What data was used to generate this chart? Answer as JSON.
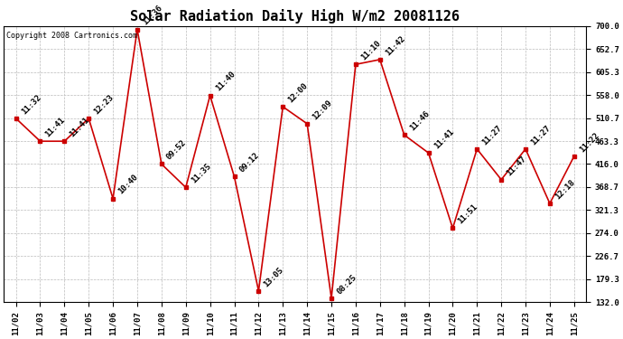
{
  "title": "Solar Radiation Daily High W/m2 20081126",
  "copyright_text": "Copyright 2008 Cartronics.com",
  "dates": [
    "11/02",
    "11/03",
    "11/04",
    "11/05",
    "11/06",
    "11/07",
    "11/08",
    "11/09",
    "11/10",
    "11/11",
    "11/12",
    "11/13",
    "11/14",
    "11/15",
    "11/16",
    "11/17",
    "11/18",
    "11/19",
    "11/20",
    "11/21",
    "11/22",
    "11/23",
    "11/24",
    "11/25"
  ],
  "values": [
    510,
    463,
    463,
    510,
    345,
    693,
    416,
    368,
    557,
    390,
    155,
    534,
    499,
    140,
    621,
    631,
    476,
    439,
    284,
    447,
    384,
    447,
    335,
    432
  ],
  "labels": [
    "11:32",
    "11:41",
    "11:41",
    "12:23",
    "10:40",
    "11:36",
    "09:52",
    "11:35",
    "11:40",
    "09:12",
    "13:05",
    "12:00",
    "12:09",
    "08:25",
    "11:10",
    "11:42",
    "11:46",
    "11:41",
    "11:51",
    "11:27",
    "11:47",
    "11:27",
    "12:18",
    "11:22"
  ],
  "yticks": [
    132.0,
    179.3,
    226.7,
    274.0,
    321.3,
    368.7,
    416.0,
    463.3,
    510.7,
    558.0,
    605.3,
    652.7,
    700.0
  ],
  "ylim": [
    132.0,
    700.0
  ],
  "background_color": "#ffffff",
  "line_color": "#cc0000",
  "marker_color": "#cc0000",
  "grid_color": "#bbbbbb",
  "title_fontsize": 11,
  "tick_fontsize": 6.5,
  "label_fontsize": 6.5,
  "copyright_fontsize": 6
}
